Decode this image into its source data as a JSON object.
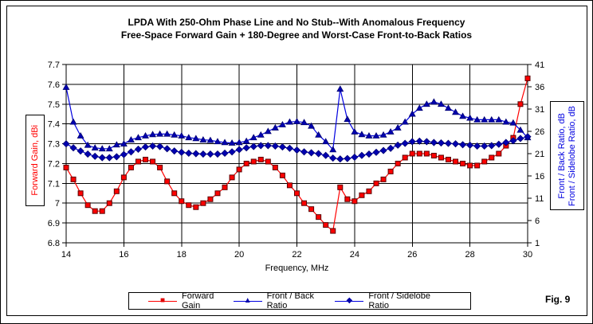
{
  "frame": {
    "fig_label": "Fig. 9"
  },
  "title": {
    "line1": "LPDA With 250-Ohm Phase Line and No Stub--With Anomalous Frequency",
    "line2": "Free-Space Forward Gain + 180-Degree and Worst-Case Front-to-Back Ratios"
  },
  "axes": {
    "x": {
      "label": "Frequency, MHz",
      "ticks": [
        "14",
        "16",
        "18",
        "20",
        "22",
        "24",
        "26",
        "28",
        "30"
      ]
    },
    "y_left": {
      "label": "Forward Gain, dBi",
      "color": "#ff0000",
      "ticks": [
        "7.7",
        "7.6",
        "7.5",
        "7.4",
        "7.3",
        "7.2",
        "7.1",
        "7",
        "6.9",
        "6.8"
      ]
    },
    "y_right": {
      "label_line1": "Front / Back Ratio, dB",
      "label_line2": "Front / Sidelobe Ratio, dB",
      "color": "#0000e0",
      "ticks": [
        "41",
        "36",
        "31",
        "26",
        "21",
        "16",
        "11",
        "6",
        "1"
      ]
    }
  },
  "legend": {
    "items": [
      {
        "label": "Forward Gain",
        "glyph": "■",
        "line_color": "#ff0000",
        "marker_color": "#e00000"
      },
      {
        "label": "Front / Back Ratio",
        "glyph": "▲",
        "line_color": "#0000e0",
        "marker_color": "#0000a8"
      },
      {
        "label": "Front / Sidelobe Ratio",
        "glyph": "◆",
        "line_color": "#0000e0",
        "marker_color": "#0000a8"
      }
    ]
  },
  "chart_data": {
    "type": "line",
    "title": "LPDA With 250-Ohm Phase Line and No Stub--With Anomalous Frequency — Free-Space Forward Gain + 180-Degree and Worst-Case Front-to-Back Ratios",
    "xlabel": "Frequency, MHz",
    "ylabel_left": "Forward Gain, dBi",
    "ylabel_right": "Front / Back Ratio, dB; Front / Sidelobe Ratio, dB",
    "xlim": [
      14,
      30
    ],
    "ylim_left": [
      6.8,
      7.7
    ],
    "ylim_right": [
      1,
      41
    ],
    "grid": true,
    "legend_position": "bottom",
    "x": [
      14,
      14.25,
      14.5,
      14.75,
      15,
      15.25,
      15.5,
      15.75,
      16,
      16.25,
      16.5,
      16.75,
      17,
      17.25,
      17.5,
      17.75,
      18,
      18.25,
      18.5,
      18.75,
      19,
      19.25,
      19.5,
      19.75,
      20,
      20.25,
      20.5,
      20.75,
      21,
      21.25,
      21.5,
      21.75,
      22,
      22.25,
      22.5,
      22.75,
      23,
      23.25,
      23.5,
      23.75,
      24,
      24.25,
      24.5,
      24.75,
      25,
      25.25,
      25.5,
      25.75,
      26,
      26.25,
      26.5,
      26.75,
      27,
      27.25,
      27.5,
      27.75,
      28,
      28.25,
      28.5,
      28.75,
      29,
      29.25,
      29.5,
      29.75,
      30
    ],
    "series": [
      {
        "name": "Forward Gain",
        "axis": "left",
        "unit": "dBi",
        "marker": "square",
        "line_color": "#ff0000",
        "marker_fill": "#ff0000",
        "marker_stroke": "#5a0000",
        "values": [
          7.18,
          7.12,
          7.05,
          6.99,
          6.96,
          6.96,
          7,
          7.06,
          7.13,
          7.18,
          7.21,
          7.22,
          7.21,
          7.18,
          7.11,
          7.05,
          7.01,
          6.99,
          6.98,
          7,
          7.02,
          7.05,
          7.08,
          7.13,
          7.17,
          7.2,
          7.21,
          7.22,
          7.21,
          7.18,
          7.14,
          7.09,
          7.05,
          7,
          6.97,
          6.93,
          6.89,
          6.86,
          7.08,
          7.02,
          7.01,
          7.04,
          7.06,
          7.1,
          7.12,
          7.16,
          7.2,
          7.23,
          7.25,
          7.25,
          7.25,
          7.24,
          7.23,
          7.22,
          7.21,
          7.2,
          7.19,
          7.19,
          7.21,
          7.23,
          7.25,
          7.29,
          7.33,
          7.5,
          7.63
        ]
      },
      {
        "name": "Front / Back Ratio",
        "axis": "right",
        "unit": "dB",
        "marker": "triangle",
        "line_color": "#0000e0",
        "marker_fill": "#0000b0",
        "marker_stroke": "#000070",
        "values": [
          35.9,
          28.1,
          25,
          22.9,
          22.3,
          22.1,
          22.1,
          23,
          23.2,
          24.1,
          24.6,
          25,
          25.3,
          25.4,
          25.4,
          25.2,
          25,
          24.6,
          24.4,
          24.1,
          24,
          23.7,
          23.5,
          23.4,
          23.5,
          23.8,
          24.6,
          25.2,
          26,
          26.8,
          27.5,
          28.1,
          28.2,
          28,
          27.2,
          25.2,
          23.7,
          21.9,
          35.5,
          28.7,
          25.9,
          25.3,
          25,
          25,
          25.2,
          25.9,
          26.8,
          28.1,
          29.9,
          31.2,
          32.1,
          32.6,
          32.1,
          31.2,
          30.3,
          29.4,
          29,
          28.6,
          28.6,
          28.6,
          28.6,
          28.1,
          27.9,
          26.3,
          24.6
        ]
      },
      {
        "name": "Front / Sidelobe Ratio",
        "axis": "right",
        "unit": "dB",
        "marker": "diamond",
        "line_color": "#0000e0",
        "marker_fill": "#0000b0",
        "marker_stroke": "#000070",
        "values": [
          23.2,
          22.3,
          21.6,
          20.9,
          20.4,
          20.1,
          20.1,
          20.3,
          20.8,
          21.4,
          22,
          22.5,
          22.7,
          22.6,
          22.1,
          21.6,
          21.3,
          21.1,
          21,
          20.9,
          20.9,
          20.9,
          21.1,
          21.4,
          21.9,
          22.3,
          22.6,
          22.8,
          22.8,
          22.7,
          22.5,
          22.2,
          21.8,
          21.4,
          21.2,
          21,
          20.6,
          20,
          19.8,
          19.9,
          20.2,
          20.6,
          20.9,
          21.3,
          21.7,
          22.2,
          22.9,
          23.3,
          23.7,
          23.8,
          23.7,
          23.5,
          23.4,
          23.3,
          23.2,
          23,
          22.9,
          22.7,
          22.7,
          22.8,
          23.1,
          23.5,
          23.9,
          24.4,
          24.8
        ]
      }
    ]
  }
}
